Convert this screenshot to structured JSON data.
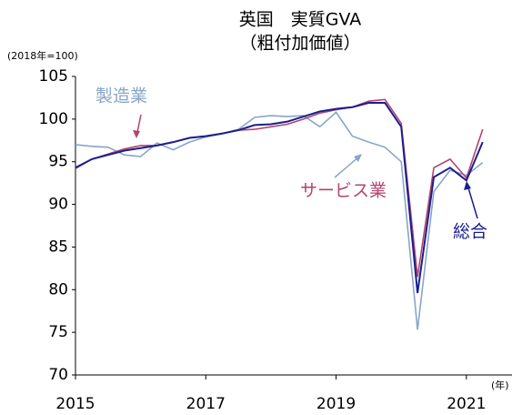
{
  "chart_data": {
    "type": "line",
    "title": "英国　実質GVA",
    "subtitle": "（粗付加価値）",
    "y_label": "(2018年=100)",
    "x_label": "(年)",
    "x": [
      2015,
      2015.25,
      2015.5,
      2015.75,
      2016,
      2016.25,
      2016.5,
      2016.75,
      2017,
      2017.25,
      2017.5,
      2017.75,
      2018,
      2018.25,
      2018.5,
      2018.75,
      2019,
      2019.25,
      2019.5,
      2019.75,
      2020,
      2020.25,
      2020.5,
      2020.75,
      2021,
      2021.25
    ],
    "series": [
      {
        "name": "製造業",
        "color": "#88a5c9",
        "values": [
          97.0,
          96.8,
          96.7,
          95.8,
          95.6,
          97.2,
          96.4,
          97.3,
          97.9,
          98.3,
          98.8,
          100.2,
          100.4,
          100.3,
          100.4,
          99.1,
          100.8,
          98.0,
          97.3,
          96.7,
          95.0,
          75.3,
          91.5,
          94.0,
          93.4,
          94.9
        ]
      },
      {
        "name": "サービス業",
        "color": "#b2456e",
        "values": [
          94.2,
          95.3,
          95.9,
          96.5,
          96.9,
          96.9,
          97.3,
          97.8,
          98.0,
          98.3,
          98.7,
          98.8,
          99.1,
          99.4,
          100.0,
          100.7,
          101.1,
          101.4,
          102.1,
          102.3,
          99.5,
          81.5,
          94.3,
          95.3,
          93.1,
          98.8
        ]
      },
      {
        "name": "総合",
        "color": "#1a1f8c",
        "values": [
          94.3,
          95.3,
          95.8,
          96.3,
          96.6,
          96.9,
          97.3,
          97.8,
          98.0,
          98.3,
          98.7,
          99.3,
          99.4,
          99.7,
          100.3,
          100.9,
          101.2,
          101.4,
          101.9,
          101.9,
          99.1,
          79.6,
          93.2,
          94.3,
          92.8,
          97.3
        ]
      }
    ],
    "xlim": [
      2015,
      2021.7
    ],
    "xticks": [
      2015,
      2017,
      2019,
      2021
    ],
    "ylim": [
      70,
      105
    ],
    "yticks": [
      70,
      75,
      80,
      85,
      90,
      95,
      100,
      105
    ]
  }
}
